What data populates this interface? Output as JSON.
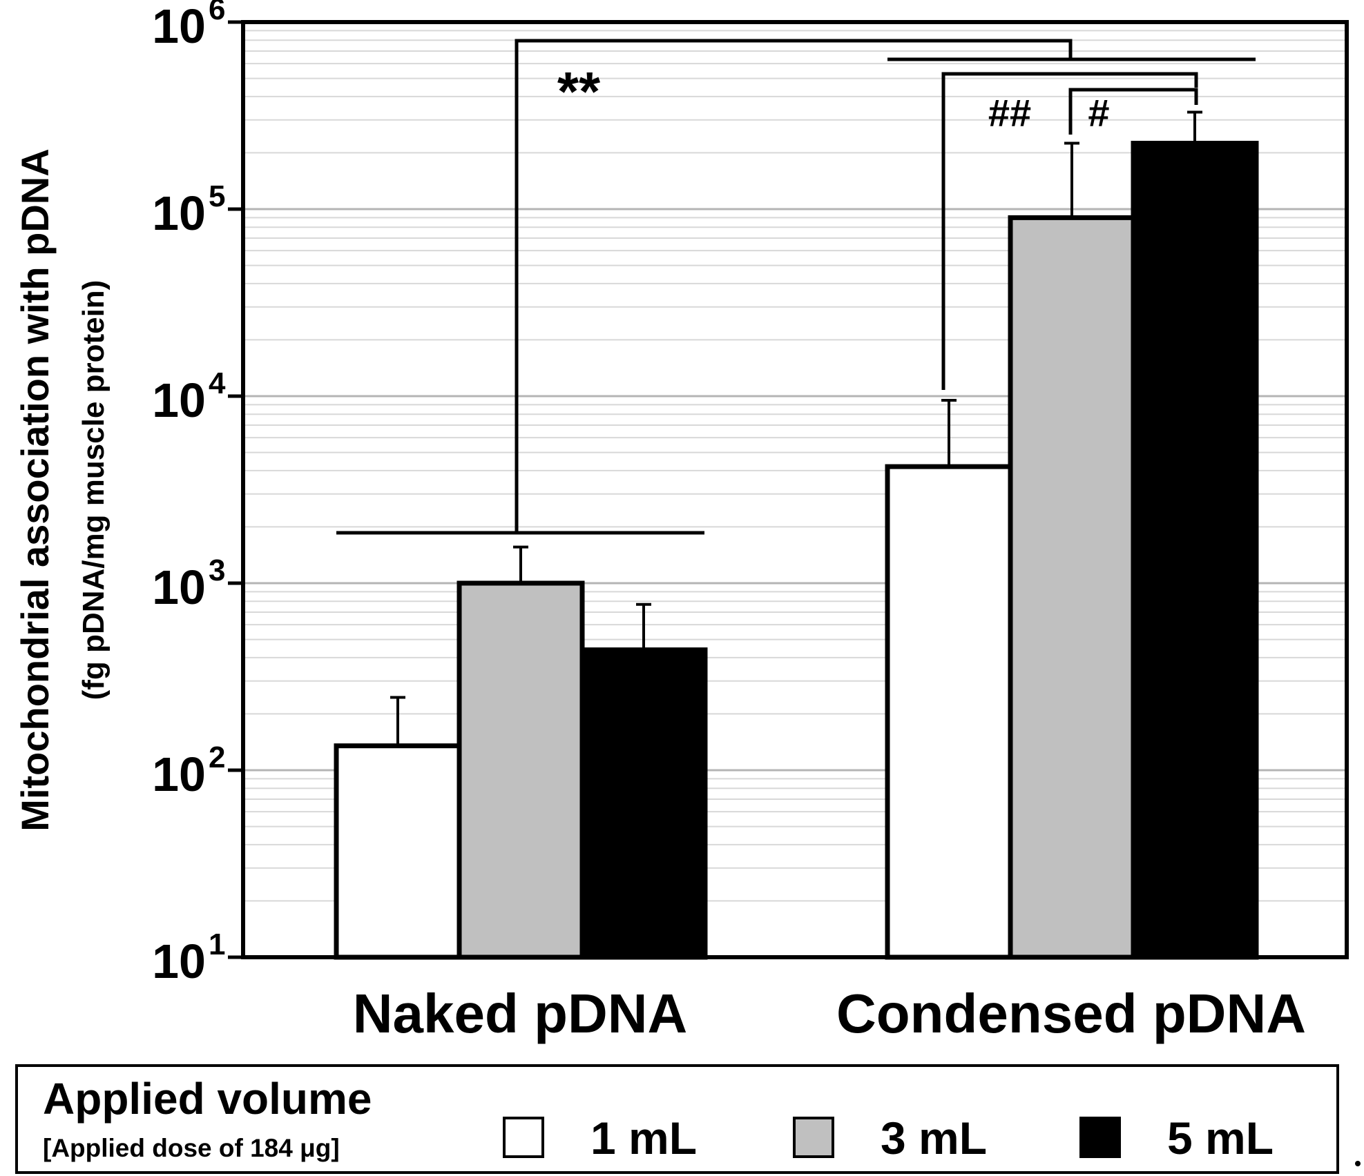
{
  "chart_data": {
    "type": "bar",
    "scale": "log",
    "ylim": [
      10,
      1000000
    ],
    "y_ticks": [
      {
        "value": 10,
        "base": "10",
        "exp": "1"
      },
      {
        "value": 100,
        "base": "10",
        "exp": "2"
      },
      {
        "value": 1000,
        "base": "10",
        "exp": "3"
      },
      {
        "value": 10000,
        "base": "10",
        "exp": "4"
      },
      {
        "value": 100000,
        "base": "10",
        "exp": "5"
      },
      {
        "value": 1000000,
        "base": "10",
        "exp": "6"
      }
    ],
    "ylabel_line1": "Mitochondrial association with pDNA",
    "ylabel_line2": "(fg pDNA/mg muscle protein)",
    "grid": true,
    "categories": [
      "Naked pDNA",
      "Condensed pDNA"
    ],
    "series": [
      {
        "name": "1 mL",
        "color": "#ffffff",
        "values": [
          135,
          4200
        ],
        "errors_upper": [
          245,
          9500
        ]
      },
      {
        "name": "3 mL",
        "color": "#c0c0c0",
        "values": [
          1000,
          90000
        ],
        "errors_upper": [
          1560,
          225000
        ]
      },
      {
        "name": "5 mL",
        "color": "#000000",
        "values": [
          440,
          225000
        ],
        "errors_upper": [
          770,
          330000
        ]
      }
    ],
    "annotations": {
      "star": "**",
      "hash_double": "##",
      "hash_single": "#"
    },
    "legend": {
      "position": "bottom",
      "title": "Applied volume",
      "subtitle": "[Applied dose of 184 μg]"
    }
  }
}
